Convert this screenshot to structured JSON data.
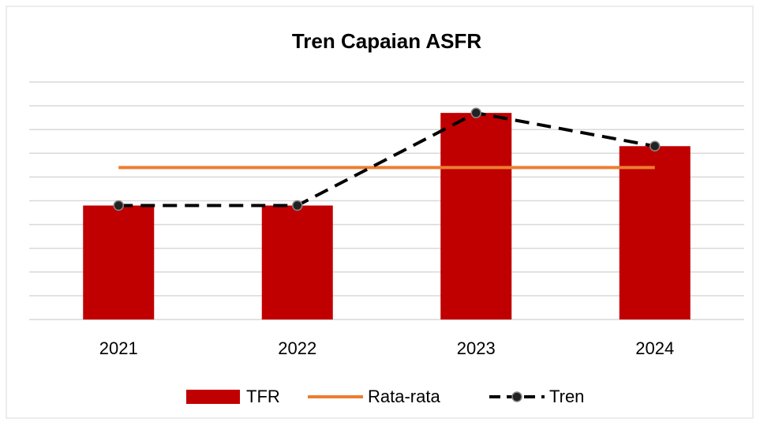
{
  "chart_data": {
    "type": "bar",
    "title": "Tren Capaian ASFR",
    "categories": [
      "2021",
      "2022",
      "2023",
      "2024"
    ],
    "series": [
      {
        "name": "TFR",
        "type": "bar",
        "color": "#c00000",
        "values": [
          4.8,
          4.8,
          8.7,
          7.3
        ]
      },
      {
        "name": "Rata-rata",
        "type": "line",
        "color": "#ed7d31",
        "values": [
          6.4,
          6.4,
          6.4,
          6.4
        ]
      },
      {
        "name": "Tren",
        "type": "line",
        "color": "#000000",
        "dashed": true,
        "markers": true,
        "values": [
          4.8,
          4.8,
          8.7,
          7.3
        ]
      }
    ],
    "ylim": [
      0,
      10
    ],
    "yticks": [
      0,
      1,
      2,
      3,
      4,
      5,
      6,
      7,
      8,
      9,
      10
    ],
    "grid": true,
    "legend": "bottom"
  }
}
